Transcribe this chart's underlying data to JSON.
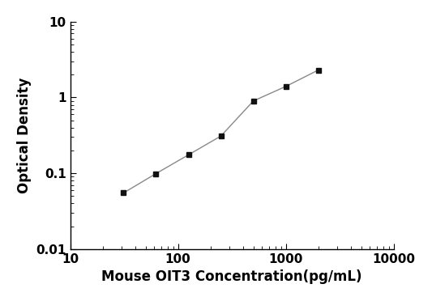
{
  "x": [
    31.25,
    62.5,
    125,
    250,
    500,
    1000,
    2000
  ],
  "y": [
    0.055,
    0.099,
    0.175,
    0.31,
    0.9,
    1.4,
    2.3
  ],
  "xlabel": "Mouse OIT3 Concentration(pg/mL)",
  "ylabel": "Optical Density",
  "xlim": [
    10,
    10000
  ],
  "ylim": [
    0.01,
    10
  ],
  "line_color": "#888888",
  "marker_color": "#111111",
  "marker": "s",
  "marker_size": 5,
  "line_width": 1.0,
  "background_color": "#ffffff",
  "xlabel_fontsize": 12,
  "ylabel_fontsize": 12,
  "tick_fontsize": 11,
  "x_tick_labels": [
    "10",
    "100",
    "1000",
    "10000"
  ],
  "x_tick_vals": [
    10,
    100,
    1000,
    10000
  ],
  "y_tick_labels": [
    "0.01",
    "0.1",
    "1",
    "10"
  ],
  "y_tick_vals": [
    0.01,
    0.1,
    1,
    10
  ]
}
